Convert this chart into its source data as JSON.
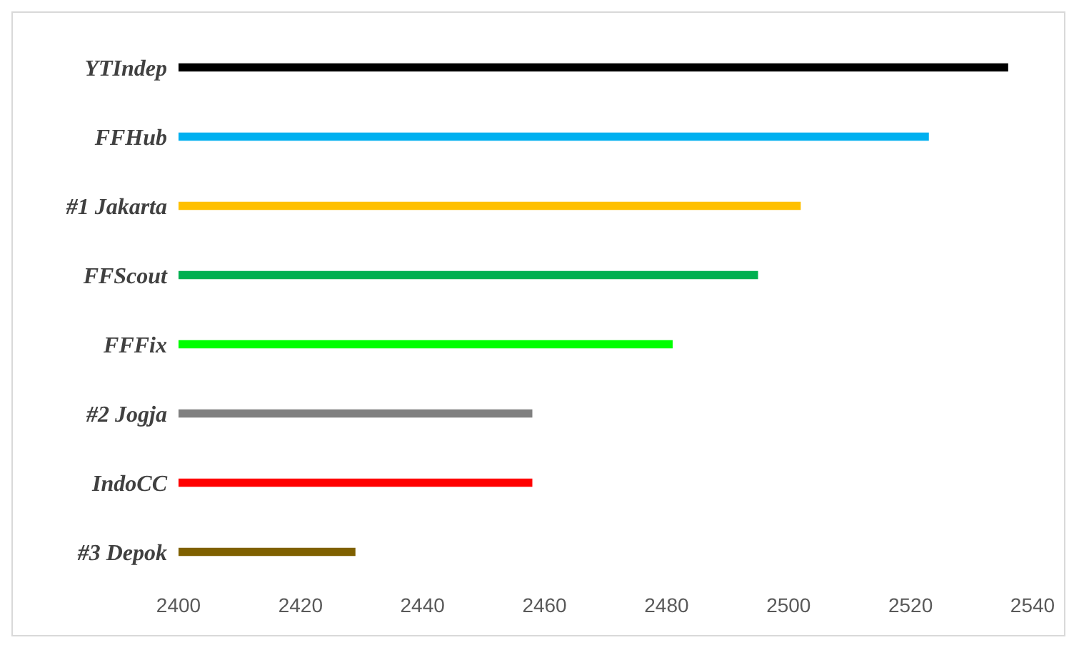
{
  "chart_data": {
    "type": "bar",
    "orientation": "horizontal",
    "categories": [
      "YTIndep",
      "FFHub",
      "#1 Jakarta",
      "FFScout",
      "FFFix",
      "#2 Jogja",
      "IndoCC",
      "#3 Depok"
    ],
    "values": [
      2536,
      2523,
      2502,
      2495,
      2481,
      2458,
      2458,
      2429
    ],
    "colors": [
      "#000000",
      "#00b0f0",
      "#ffc000",
      "#00b050",
      "#00ff00",
      "#808080",
      "#ff0000",
      "#7f6000"
    ],
    "xlim": [
      2400,
      2540
    ],
    "xticks": [
      2400,
      2420,
      2440,
      2460,
      2480,
      2500,
      2520,
      2540
    ],
    "grid": false
  }
}
